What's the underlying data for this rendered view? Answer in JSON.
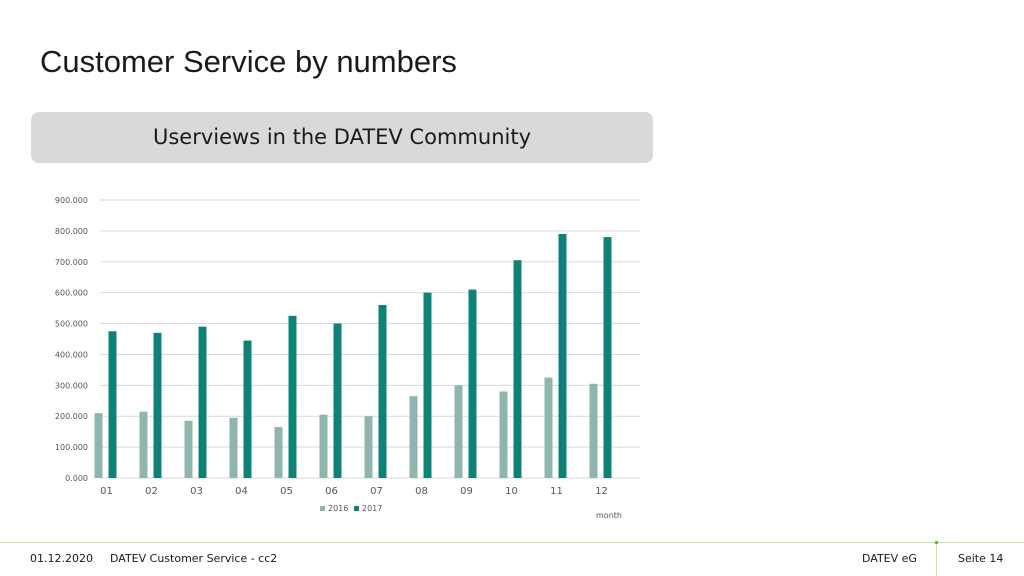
{
  "slide": {
    "title": "Customer Service by numbers"
  },
  "footer": {
    "date": "01.12.2020",
    "department": "DATEV Customer Service - cc2",
    "company": "DATEV eG",
    "page": "Seite 14"
  },
  "colors": {
    "series_2016": "#8fb5af",
    "series_2017": "#0f8278",
    "gridline": "#d9d9d9",
    "banner": "#d9d9d9",
    "footer_line": "#c6dfa8"
  },
  "chart_data": {
    "type": "bar",
    "title": "Userviews in the DATEV Community",
    "xlabel": "month",
    "ylabel": "",
    "categories": [
      "01",
      "02",
      "03",
      "04",
      "05",
      "06",
      "07",
      "08",
      "09",
      "10",
      "11",
      "12"
    ],
    "series": [
      {
        "name": "2016",
        "values": [
          210000,
          215000,
          185000,
          195000,
          165000,
          205000,
          200000,
          265000,
          300000,
          280000,
          325000,
          305000
        ]
      },
      {
        "name": "2017",
        "values": [
          475000,
          470000,
          490000,
          445000,
          525000,
          500000,
          560000,
          600000,
          610000,
          705000,
          790000,
          780000
        ]
      }
    ],
    "ylim": [
      0,
      900000
    ],
    "yticks": [
      "0.000",
      "100.000",
      "200.000",
      "300.000",
      "400.000",
      "500.000",
      "600.000",
      "700.000",
      "800.000",
      "900.000"
    ],
    "grid": true,
    "legend_position": "bottom-center"
  }
}
